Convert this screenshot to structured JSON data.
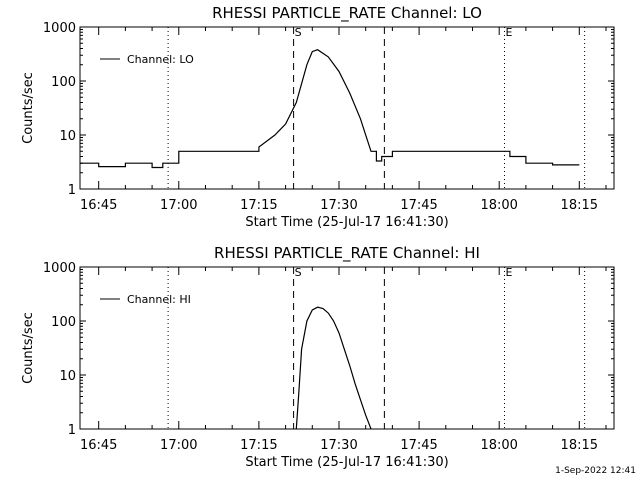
{
  "chart_data": [
    {
      "type": "line",
      "title": "RHESSI PARTICLE_RATE Channel: LO",
      "xlabel": "Start Time (25-Jul-17 16:41:30)",
      "ylabel": "Counts/sec",
      "y_scale": "log",
      "ylim": [
        1,
        1000
      ],
      "ytick_labels": [
        "1",
        "10",
        "100",
        "1000"
      ],
      "xtick_labels": [
        "16:45",
        "17:00",
        "17:15",
        "17:30",
        "17:45",
        "18:00",
        "18:15"
      ],
      "legend": "top-left",
      "series": [
        {
          "name": "Channel: LO",
          "x": [
            "16:41:30",
            "16:45",
            "16:50",
            "16:55",
            "16:57",
            "17:00",
            "17:05",
            "17:10",
            "17:15",
            "17:18",
            "17:20",
            "17:22",
            "17:24",
            "17:25",
            "17:26",
            "17:28",
            "17:30",
            "17:32",
            "17:34",
            "17:36",
            "17:37",
            "17:38",
            "17:40",
            "17:45",
            "17:50",
            "17:55",
            "18:00",
            "18:02",
            "18:05",
            "18:10",
            "18:15"
          ],
          "y": [
            3,
            2.6,
            3,
            2.5,
            3,
            5,
            5,
            5,
            6,
            10,
            16,
            40,
            200,
            350,
            380,
            280,
            150,
            60,
            20,
            5,
            3.3,
            4,
            5,
            5,
            5,
            5,
            5,
            4,
            3,
            2.8,
            2.8
          ]
        }
      ],
      "vlines": [
        {
          "label": "S",
          "x": "17:21:30",
          "style": "dashed"
        },
        {
          "label": "",
          "x": "17:38:30",
          "style": "dashed"
        },
        {
          "label": "",
          "x": "16:58:00",
          "style": "dotted"
        },
        {
          "label": "E",
          "x": "18:01:00",
          "style": "dotted"
        },
        {
          "label": "",
          "x": "18:16:00",
          "style": "dotted"
        }
      ]
    },
    {
      "type": "line",
      "title": "RHESSI PARTICLE_RATE Channel: HI",
      "xlabel": "Start Time (25-Jul-17 16:41:30)",
      "ylabel": "Counts/sec",
      "y_scale": "log",
      "ylim": [
        1,
        1000
      ],
      "ytick_labels": [
        "1",
        "10",
        "100",
        "1000"
      ],
      "xtick_labels": [
        "16:45",
        "17:00",
        "17:15",
        "17:30",
        "17:45",
        "18:00",
        "18:15"
      ],
      "legend": "top-left",
      "series": [
        {
          "name": "Channel: HI",
          "x": [
            "17:22:00",
            "17:22:30",
            "17:23",
            "17:24",
            "17:25",
            "17:26",
            "17:27",
            "17:28",
            "17:29",
            "17:30",
            "17:31",
            "17:32",
            "17:33",
            "17:34",
            "17:35",
            "17:36"
          ],
          "y": [
            1,
            5,
            30,
            100,
            160,
            180,
            170,
            140,
            100,
            60,
            30,
            15,
            7,
            3.5,
            1.8,
            1
          ]
        }
      ],
      "vlines": [
        {
          "label": "S",
          "x": "17:21:30",
          "style": "dashed"
        },
        {
          "label": "",
          "x": "17:38:30",
          "style": "dashed"
        },
        {
          "label": "",
          "x": "16:58:00",
          "style": "dotted"
        },
        {
          "label": "E",
          "x": "18:01:00",
          "style": "dotted"
        },
        {
          "label": "",
          "x": "18:16:00",
          "style": "dotted"
        }
      ]
    }
  ],
  "footer": {
    "timestamp": "1-Sep-2022 12:41"
  }
}
